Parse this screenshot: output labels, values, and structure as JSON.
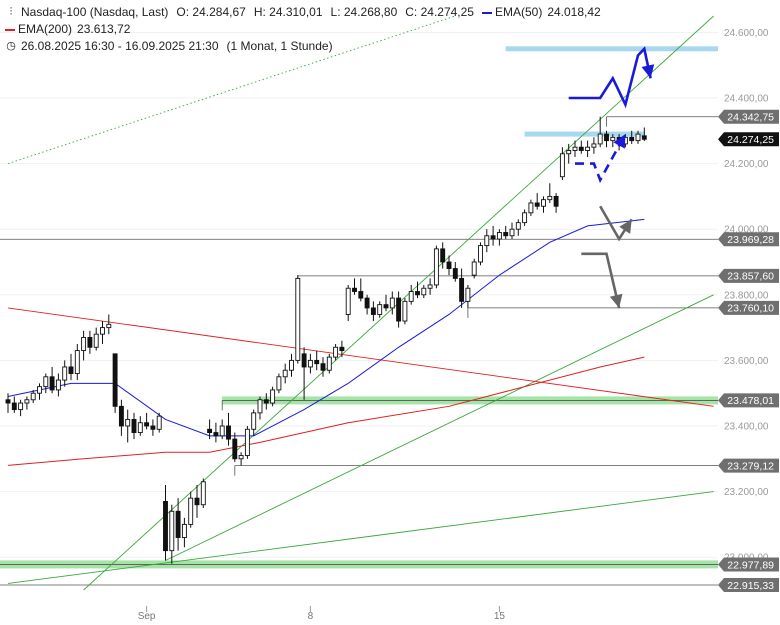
{
  "header": {
    "instrument": "Nasdaq-100 (Nasdaq, Last)",
    "open": "O: 24.284,67",
    "high": "H: 24.310,01",
    "low": "L: 24.268,80",
    "close": "C: 24.274,25",
    "ema50_label": "EMA(50)",
    "ema50_value": "24.018,42",
    "ema200_label": "EMA(200)",
    "ema200_value": "23.613,72",
    "period": "26.08.2025 16:30 - 16.09.2025 21:30",
    "interval": "(1 Monat, 1 Stunde)",
    "icons": [
      "candlestick-icon",
      "clock-icon"
    ]
  },
  "colors": {
    "ema50": "#1a1adb",
    "ema200": "#e02020",
    "trendline": "#3aa83a",
    "support_zone": "#a6e3a6",
    "resistance_zone": "#a8d8f0",
    "arrow_blue": "#1a1adb",
    "arrow_gray": "#666666",
    "tag_gray": "#6f6f6f",
    "tag_black": "#111111"
  },
  "chart_data": {
    "type": "candlestick",
    "ylim": [
      22900,
      24650
    ],
    "y_ticks": [
      "24.600,00",
      "24.400,00",
      "24.200,00",
      "24.000,00",
      "23.800,00",
      "23.600,00",
      "23.400,00",
      "23.200,00",
      "23.000,00"
    ],
    "y_tick_values": [
      24600,
      24400,
      24200,
      24000,
      23800,
      23600,
      23400,
      23200,
      23000
    ],
    "x_ticks": [
      {
        "label": "Sep",
        "bar": 22
      },
      {
        "label": "8",
        "bar": 48
      },
      {
        "label": "15",
        "bar": 78
      }
    ],
    "bars_visible": 112,
    "candles": [
      {
        "o": 23480,
        "h": 23500,
        "l": 23440,
        "c": 23470
      },
      {
        "o": 23470,
        "h": 23490,
        "l": 23440,
        "c": 23450
      },
      {
        "o": 23450,
        "h": 23480,
        "l": 23430,
        "c": 23470
      },
      {
        "o": 23470,
        "h": 23490,
        "l": 23450,
        "c": 23480
      },
      {
        "o": 23480,
        "h": 23510,
        "l": 23470,
        "c": 23500
      },
      {
        "o": 23500,
        "h": 23530,
        "l": 23480,
        "c": 23520
      },
      {
        "o": 23520,
        "h": 23560,
        "l": 23500,
        "c": 23550
      },
      {
        "o": 23550,
        "h": 23580,
        "l": 23500,
        "c": 23510
      },
      {
        "o": 23510,
        "h": 23560,
        "l": 23490,
        "c": 23540
      },
      {
        "o": 23540,
        "h": 23600,
        "l": 23520,
        "c": 23580
      },
      {
        "o": 23580,
        "h": 23620,
        "l": 23540,
        "c": 23560
      },
      {
        "o": 23560,
        "h": 23650,
        "l": 23540,
        "c": 23630
      },
      {
        "o": 23630,
        "h": 23690,
        "l": 23600,
        "c": 23670
      },
      {
        "o": 23670,
        "h": 23690,
        "l": 23620,
        "c": 23640
      },
      {
        "o": 23640,
        "h": 23700,
        "l": 23630,
        "c": 23680
      },
      {
        "o": 23680,
        "h": 23720,
        "l": 23650,
        "c": 23700
      },
      {
        "o": 23700,
        "h": 23740,
        "l": 23680,
        "c": 23710
      },
      {
        "o": 23620,
        "h": 23620,
        "l": 23440,
        "c": 23460
      },
      {
        "o": 23460,
        "h": 23480,
        "l": 23370,
        "c": 23400
      },
      {
        "o": 23400,
        "h": 23450,
        "l": 23350,
        "c": 23420
      },
      {
        "o": 23420,
        "h": 23440,
        "l": 23360,
        "c": 23380
      },
      {
        "o": 23380,
        "h": 23430,
        "l": 23370,
        "c": 23410
      },
      {
        "o": 23410,
        "h": 23440,
        "l": 23390,
        "c": 23400
      },
      {
        "o": 23400,
        "h": 23420,
        "l": 23370,
        "c": 23390
      },
      {
        "o": 23390,
        "h": 23440,
        "l": 23380,
        "c": 23430
      },
      {
        "o": 23170,
        "h": 23220,
        "l": 22990,
        "c": 23020
      },
      {
        "o": 23020,
        "h": 23160,
        "l": 22980,
        "c": 23140
      },
      {
        "o": 23140,
        "h": 23180,
        "l": 23020,
        "c": 23060
      },
      {
        "o": 23060,
        "h": 23120,
        "l": 23030,
        "c": 23100
      },
      {
        "o": 23100,
        "h": 23200,
        "l": 23090,
        "c": 23180
      },
      {
        "o": 23180,
        "h": 23220,
        "l": 23120,
        "c": 23160
      },
      {
        "o": 23160,
        "h": 23240,
        "l": 23150,
        "c": 23230
      },
      {
        "o": 23390,
        "h": 23420,
        "l": 23360,
        "c": 23380
      },
      {
        "o": 23380,
        "h": 23410,
        "l": 23350,
        "c": 23370
      },
      {
        "o": 23370,
        "h": 23420,
        "l": 23360,
        "c": 23400
      },
      {
        "o": 23400,
        "h": 23440,
        "l": 23340,
        "c": 23360
      },
      {
        "o": 23360,
        "h": 23380,
        "l": 23290,
        "c": 23300
      },
      {
        "o": 23300,
        "h": 23320,
        "l": 23280,
        "c": 23310
      },
      {
        "o": 23310,
        "h": 23400,
        "l": 23300,
        "c": 23390
      },
      {
        "o": 23390,
        "h": 23450,
        "l": 23370,
        "c": 23440
      },
      {
        "o": 23440,
        "h": 23490,
        "l": 23420,
        "c": 23480
      },
      {
        "o": 23480,
        "h": 23500,
        "l": 23450,
        "c": 23470
      },
      {
        "o": 23470,
        "h": 23520,
        "l": 23460,
        "c": 23510
      },
      {
        "o": 23510,
        "h": 23560,
        "l": 23500,
        "c": 23550
      },
      {
        "o": 23550,
        "h": 23590,
        "l": 23530,
        "c": 23570
      },
      {
        "o": 23570,
        "h": 23620,
        "l": 23550,
        "c": 23600
      },
      {
        "o": 23600,
        "h": 23860,
        "l": 23590,
        "c": 23850
      },
      {
        "o": 23620,
        "h": 23640,
        "l": 23480,
        "c": 23580
      },
      {
        "o": 23580,
        "h": 23620,
        "l": 23560,
        "c": 23600
      },
      {
        "o": 23600,
        "h": 23630,
        "l": 23570,
        "c": 23590
      },
      {
        "o": 23590,
        "h": 23610,
        "l": 23550,
        "c": 23570
      },
      {
        "o": 23570,
        "h": 23620,
        "l": 23560,
        "c": 23610
      },
      {
        "o": 23610,
        "h": 23650,
        "l": 23600,
        "c": 23640
      },
      {
        "o": 23640,
        "h": 23660,
        "l": 23610,
        "c": 23630
      },
      {
        "o": 23740,
        "h": 23830,
        "l": 23720,
        "c": 23820
      },
      {
        "o": 23820,
        "h": 23850,
        "l": 23800,
        "c": 23810
      },
      {
        "o": 23810,
        "h": 23850,
        "l": 23780,
        "c": 23790
      },
      {
        "o": 23790,
        "h": 23800,
        "l": 23740,
        "c": 23760
      },
      {
        "o": 23760,
        "h": 23780,
        "l": 23720,
        "c": 23740
      },
      {
        "o": 23740,
        "h": 23780,
        "l": 23730,
        "c": 23770
      },
      {
        "o": 23770,
        "h": 23800,
        "l": 23750,
        "c": 23760
      },
      {
        "o": 23760,
        "h": 23810,
        "l": 23740,
        "c": 23790
      },
      {
        "o": 23790,
        "h": 23810,
        "l": 23700,
        "c": 23720
      },
      {
        "o": 23720,
        "h": 23790,
        "l": 23710,
        "c": 23780
      },
      {
        "o": 23780,
        "h": 23830,
        "l": 23770,
        "c": 23810
      },
      {
        "o": 23810,
        "h": 23840,
        "l": 23790,
        "c": 23800
      },
      {
        "o": 23800,
        "h": 23830,
        "l": 23790,
        "c": 23820
      },
      {
        "o": 23820,
        "h": 23850,
        "l": 23800,
        "c": 23830
      },
      {
        "o": 23830,
        "h": 23950,
        "l": 23820,
        "c": 23940
      },
      {
        "o": 23940,
        "h": 23960,
        "l": 23880,
        "c": 23900
      },
      {
        "o": 23900,
        "h": 23920,
        "l": 23860,
        "c": 23880
      },
      {
        "o": 23880,
        "h": 23900,
        "l": 23840,
        "c": 23850
      },
      {
        "o": 23850,
        "h": 23880,
        "l": 23760,
        "c": 23780
      },
      {
        "o": 23780,
        "h": 23830,
        "l": 23760,
        "c": 23820
      },
      {
        "o": 23860,
        "h": 23910,
        "l": 23850,
        "c": 23900
      },
      {
        "o": 23900,
        "h": 23960,
        "l": 23890,
        "c": 23950
      },
      {
        "o": 23950,
        "h": 24000,
        "l": 23930,
        "c": 23980
      },
      {
        "o": 23980,
        "h": 24010,
        "l": 23950,
        "c": 23970
      },
      {
        "o": 23970,
        "h": 24000,
        "l": 23950,
        "c": 23990
      },
      {
        "o": 23990,
        "h": 24010,
        "l": 23970,
        "c": 23980
      },
      {
        "o": 23980,
        "h": 24020,
        "l": 23970,
        "c": 24000
      },
      {
        "o": 24000,
        "h": 24030,
        "l": 23980,
        "c": 24020
      },
      {
        "o": 24020,
        "h": 24060,
        "l": 24010,
        "c": 24050
      },
      {
        "o": 24050,
        "h": 24090,
        "l": 24040,
        "c": 24080
      },
      {
        "o": 24080,
        "h": 24110,
        "l": 24060,
        "c": 24070
      },
      {
        "o": 24070,
        "h": 24100,
        "l": 24050,
        "c": 24090
      },
      {
        "o": 24090,
        "h": 24140,
        "l": 24080,
        "c": 24100
      },
      {
        "o": 24100,
        "h": 24110,
        "l": 24050,
        "c": 24070
      },
      {
        "o": 24160,
        "h": 24250,
        "l": 24150,
        "c": 24230
      },
      {
        "o": 24230,
        "h": 24260,
        "l": 24200,
        "c": 24240
      },
      {
        "o": 24240,
        "h": 24270,
        "l": 24220,
        "c": 24250
      },
      {
        "o": 24250,
        "h": 24270,
        "l": 24230,
        "c": 24240
      },
      {
        "o": 24240,
        "h": 24270,
        "l": 24220,
        "c": 24250
      },
      {
        "o": 24250,
        "h": 24280,
        "l": 24230,
        "c": 24260
      },
      {
        "o": 24260,
        "h": 24343,
        "l": 24250,
        "c": 24290
      },
      {
        "o": 24290,
        "h": 24300,
        "l": 24250,
        "c": 24270
      },
      {
        "o": 24270,
        "h": 24290,
        "l": 24250,
        "c": 24280
      },
      {
        "o": 24280,
        "h": 24290,
        "l": 24240,
        "c": 24260
      },
      {
        "o": 24260,
        "h": 24290,
        "l": 24250,
        "c": 24280
      },
      {
        "o": 24280,
        "h": 24300,
        "l": 24260,
        "c": 24270
      },
      {
        "o": 24270,
        "h": 24300,
        "l": 24260,
        "c": 24290
      },
      {
        "o": 24284.67,
        "h": 24310.01,
        "l": 24268.8,
        "c": 24274.25
      }
    ],
    "ema50": [
      [
        0,
        23490
      ],
      [
        10,
        23530
      ],
      [
        17,
        23530
      ],
      [
        25,
        23420
      ],
      [
        32,
        23370
      ],
      [
        39,
        23370
      ],
      [
        47,
        23450
      ],
      [
        54,
        23530
      ],
      [
        62,
        23640
      ],
      [
        70,
        23740
      ],
      [
        78,
        23860
      ],
      [
        86,
        23960
      ],
      [
        92,
        24010
      ],
      [
        101,
        24030
      ]
    ],
    "ema200": [
      [
        0,
        23280
      ],
      [
        12,
        23300
      ],
      [
        25,
        23320
      ],
      [
        32,
        23320
      ],
      [
        40,
        23350
      ],
      [
        54,
        23410
      ],
      [
        70,
        23460
      ],
      [
        82,
        23520
      ],
      [
        94,
        23580
      ],
      [
        101,
        23610
      ]
    ],
    "price_levels": [
      {
        "label": "24.342,75",
        "value": 24342.75,
        "from_bar": 95
      },
      {
        "label": "24.274,25",
        "value": 24274.25,
        "current": true
      },
      {
        "label": "23.969,28",
        "value": 23969.28,
        "from_bar": 0
      },
      {
        "label": "23.857,60",
        "value": 23857.6,
        "from_bar": 46
      },
      {
        "label": "23.760,10",
        "value": 23760.1,
        "from_bar": 73
      },
      {
        "label": "23.478,01",
        "value": 23478.01,
        "from_bar": 34
      },
      {
        "label": "23.279,12",
        "value": 23279.12,
        "from_bar": 36
      },
      {
        "label": "22.977,89",
        "value": 22977.89,
        "from_bar": 0
      },
      {
        "label": "22.915,33",
        "value": 22915.33,
        "from_bar": 0
      }
    ],
    "zones": [
      {
        "kind": "resistance",
        "bars": [
          82,
          101
        ],
        "value": 24290
      },
      {
        "kind": "resistance",
        "bars": [
          79,
          112
        ],
        "value": 24550
      },
      {
        "kind": "support",
        "bars": [
          34,
          112
        ],
        "value": 23478
      },
      {
        "kind": "support",
        "bars": [
          0,
          112
        ],
        "value": 22978
      }
    ],
    "trendlines": [
      {
        "color": "trendline",
        "from": [
          12,
          22900
        ],
        "to": [
          112,
          24650
        ]
      },
      {
        "color": "trendline",
        "from": [
          25,
          22990
        ],
        "to": [
          112,
          23800
        ]
      },
      {
        "color": "trendline",
        "from": [
          0,
          22920
        ],
        "to": [
          112,
          23200
        ]
      },
      {
        "color": "trendline",
        "dotted": true,
        "from": [
          0,
          24200
        ],
        "to": [
          71,
          24650
        ]
      },
      {
        "color": "ema200",
        "from": [
          0,
          23760
        ],
        "to": [
          112,
          23460
        ]
      }
    ],
    "arrows": [
      {
        "color": "arrow_blue",
        "dashed": false,
        "points": [
          [
            89,
            24400
          ],
          [
            94,
            24400
          ],
          [
            96,
            24460
          ],
          [
            98,
            24380
          ],
          [
            100,
            24530
          ],
          [
            101,
            24550
          ],
          [
            102,
            24460
          ]
        ]
      },
      {
        "color": "arrow_blue",
        "dashed": true,
        "points": [
          [
            90,
            24200
          ],
          [
            93,
            24200
          ],
          [
            94,
            24150
          ],
          [
            98,
            24290
          ]
        ]
      },
      {
        "color": "arrow_gray",
        "dashed": false,
        "points": [
          [
            94,
            24070
          ],
          [
            97,
            23970
          ],
          [
            99,
            24030
          ]
        ]
      },
      {
        "color": "arrow_gray",
        "dashed": false,
        "points": [
          [
            91,
            23925
          ],
          [
            95,
            23925
          ],
          [
            97,
            23760
          ]
        ]
      }
    ]
  }
}
